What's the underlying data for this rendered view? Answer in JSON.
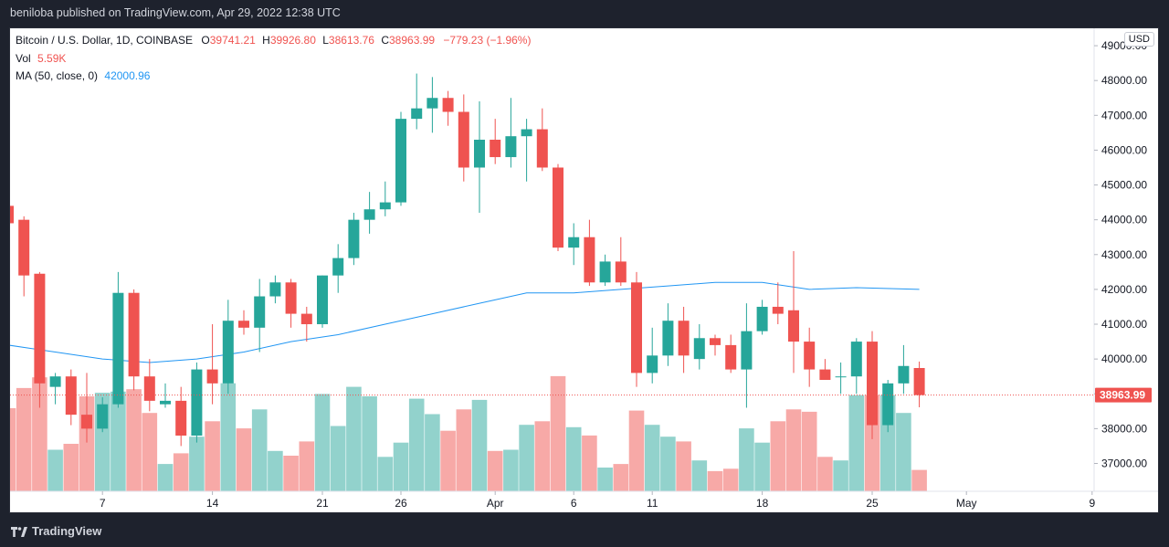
{
  "header": {
    "publisher_line": "beniloba published on TradingView.com, Apr 29, 2022 12:38 UTC"
  },
  "legend": {
    "symbol": "Bitcoin / U.S. Dollar, 1D, COINBASE",
    "o_label": "O",
    "o_value": "39741.21",
    "h_label": "H",
    "h_value": "39926.80",
    "l_label": "L",
    "l_value": "38613.76",
    "c_label": "C",
    "c_value": "38963.99",
    "change": "−779.23 (−1.96%)",
    "vol_label": "Vol",
    "vol_value": "5.59K",
    "ma_label": "MA (50, close, 0)",
    "ma_value": "42000.96"
  },
  "currency_badge": "USD",
  "last_price_label": "38963.99",
  "footer": {
    "logo_text": "TradingView"
  },
  "colors": {
    "up": "#26a69a",
    "down": "#ef5350",
    "up_volume": "#92d2cc",
    "down_volume": "#f7a9a7",
    "ma_line": "#2196f3",
    "background": "#ffffff"
  },
  "chart_data": {
    "type": "candlestick",
    "title": "Bitcoin / U.S. Dollar, 1D, COINBASE",
    "y_axis": {
      "ticks": [
        37000,
        38000,
        39000,
        40000,
        41000,
        42000,
        43000,
        44000,
        45000,
        46000,
        47000,
        48000,
        49000
      ],
      "tick_labels": [
        "37000.00",
        "38000.00",
        "39000.00",
        "40000.00",
        "41000.00",
        "42000.00",
        "43000.00",
        "44000.00",
        "45000.00",
        "46000.00",
        "47000.00",
        "48000.00",
        "49000.00"
      ],
      "range": [
        36200,
        49500
      ]
    },
    "x_axis": {
      "tick_labels": [
        "7",
        "14",
        "21",
        "26",
        "Apr",
        "6",
        "11",
        "18",
        "25",
        "May",
        "9"
      ],
      "tick_days": [
        6,
        13,
        20,
        25,
        31,
        36,
        41,
        48,
        55,
        61,
        69
      ]
    },
    "candles": [
      {
        "day": 0,
        "o": 44400,
        "h": 44500,
        "l": 43900,
        "c": 43900
      },
      {
        "day": 1,
        "o": 44000,
        "h": 44100,
        "l": 41800,
        "c": 42400
      },
      {
        "day": 2,
        "o": 42450,
        "h": 42500,
        "l": 38600,
        "c": 39300
      },
      {
        "day": 3,
        "o": 39200,
        "h": 39600,
        "l": 38700,
        "c": 39500
      },
      {
        "day": 4,
        "o": 39500,
        "h": 39700,
        "l": 38100,
        "c": 38400
      },
      {
        "day": 5,
        "o": 38400,
        "h": 39600,
        "l": 37600,
        "c": 38000
      },
      {
        "day": 6,
        "o": 38000,
        "h": 38900,
        "l": 37900,
        "c": 38700
      },
      {
        "day": 7,
        "o": 38700,
        "h": 42500,
        "l": 38600,
        "c": 41900
      },
      {
        "day": 8,
        "o": 41900,
        "h": 42000,
        "l": 39100,
        "c": 39500
      },
      {
        "day": 9,
        "o": 39500,
        "h": 40000,
        "l": 38500,
        "c": 38800
      },
      {
        "day": 10,
        "o": 38700,
        "h": 39300,
        "l": 38600,
        "c": 38800
      },
      {
        "day": 11,
        "o": 38800,
        "h": 39200,
        "l": 37500,
        "c": 37800
      },
      {
        "day": 12,
        "o": 37800,
        "h": 39900,
        "l": 37600,
        "c": 39700
      },
      {
        "day": 13,
        "o": 39700,
        "h": 41000,
        "l": 38700,
        "c": 39300
      },
      {
        "day": 14,
        "o": 39300,
        "h": 41700,
        "l": 39000,
        "c": 41100
      },
      {
        "day": 15,
        "o": 41100,
        "h": 41400,
        "l": 40700,
        "c": 40900
      },
      {
        "day": 16,
        "o": 40900,
        "h": 42300,
        "l": 40200,
        "c": 41800
      },
      {
        "day": 17,
        "o": 41800,
        "h": 42400,
        "l": 41600,
        "c": 42200
      },
      {
        "day": 18,
        "o": 42200,
        "h": 42300,
        "l": 40900,
        "c": 41300
      },
      {
        "day": 19,
        "o": 41300,
        "h": 41500,
        "l": 40500,
        "c": 41000
      },
      {
        "day": 20,
        "o": 41000,
        "h": 42400,
        "l": 40900,
        "c": 42400
      },
      {
        "day": 21,
        "o": 42400,
        "h": 43300,
        "l": 41900,
        "c": 42900
      },
      {
        "day": 22,
        "o": 42900,
        "h": 44200,
        "l": 42700,
        "c": 44000
      },
      {
        "day": 23,
        "o": 44000,
        "h": 44800,
        "l": 43600,
        "c": 44300
      },
      {
        "day": 24,
        "o": 44300,
        "h": 45100,
        "l": 44100,
        "c": 44500
      },
      {
        "day": 25,
        "o": 44500,
        "h": 47100,
        "l": 44400,
        "c": 46900
      },
      {
        "day": 26,
        "o": 46900,
        "h": 48200,
        "l": 46600,
        "c": 47200
      },
      {
        "day": 27,
        "o": 47200,
        "h": 48100,
        "l": 46500,
        "c": 47500
      },
      {
        "day": 28,
        "o": 47500,
        "h": 47700,
        "l": 46700,
        "c": 47100
      },
      {
        "day": 29,
        "o": 47100,
        "h": 47600,
        "l": 45100,
        "c": 45500
      },
      {
        "day": 30,
        "o": 45500,
        "h": 47400,
        "l": 44200,
        "c": 46300
      },
      {
        "day": 31,
        "o": 46300,
        "h": 46900,
        "l": 45600,
        "c": 45800
      },
      {
        "day": 32,
        "o": 45800,
        "h": 47500,
        "l": 45500,
        "c": 46400
      },
      {
        "day": 33,
        "o": 46400,
        "h": 46900,
        "l": 45100,
        "c": 46600
      },
      {
        "day": 34,
        "o": 46600,
        "h": 47200,
        "l": 45400,
        "c": 45500
      },
      {
        "day": 35,
        "o": 45500,
        "h": 45600,
        "l": 43100,
        "c": 43200
      },
      {
        "day": 36,
        "o": 43200,
        "h": 43900,
        "l": 42700,
        "c": 43500
      },
      {
        "day": 37,
        "o": 43500,
        "h": 44000,
        "l": 42100,
        "c": 42200
      },
      {
        "day": 38,
        "o": 42200,
        "h": 43000,
        "l": 42100,
        "c": 42800
      },
      {
        "day": 39,
        "o": 42800,
        "h": 43500,
        "l": 42100,
        "c": 42200
      },
      {
        "day": 40,
        "o": 42200,
        "h": 42500,
        "l": 39200,
        "c": 39600
      },
      {
        "day": 41,
        "o": 39600,
        "h": 40900,
        "l": 39300,
        "c": 40100
      },
      {
        "day": 42,
        "o": 40100,
        "h": 41600,
        "l": 39800,
        "c": 41100
      },
      {
        "day": 43,
        "o": 41100,
        "h": 41500,
        "l": 39600,
        "c": 40100
      },
      {
        "day": 44,
        "o": 40000,
        "h": 41000,
        "l": 39700,
        "c": 40600
      },
      {
        "day": 45,
        "o": 40600,
        "h": 40700,
        "l": 40100,
        "c": 40400
      },
      {
        "day": 46,
        "o": 40400,
        "h": 40700,
        "l": 39600,
        "c": 39700
      },
      {
        "day": 47,
        "o": 39700,
        "h": 41600,
        "l": 38600,
        "c": 40800
      },
      {
        "day": 48,
        "o": 40800,
        "h": 41700,
        "l": 40700,
        "c": 41500
      },
      {
        "day": 49,
        "o": 41500,
        "h": 42200,
        "l": 41000,
        "c": 41300
      },
      {
        "day": 50,
        "o": 41400,
        "h": 43100,
        "l": 39600,
        "c": 40500
      },
      {
        "day": 51,
        "o": 40500,
        "h": 40900,
        "l": 39200,
        "c": 39700
      },
      {
        "day": 52,
        "o": 39700,
        "h": 40000,
        "l": 39400,
        "c": 39400
      },
      {
        "day": 53,
        "o": 39500,
        "h": 39900,
        "l": 39000,
        "c": 39500
      },
      {
        "day": 54,
        "o": 39500,
        "h": 40600,
        "l": 39000,
        "c": 40500
      },
      {
        "day": 55,
        "o": 40500,
        "h": 40800,
        "l": 37700,
        "c": 38100
      },
      {
        "day": 56,
        "o": 38100,
        "h": 39400,
        "l": 37900,
        "c": 39300
      },
      {
        "day": 57,
        "o": 39300,
        "h": 40400,
        "l": 39000,
        "c": 39800
      },
      {
        "day": 58,
        "o": 39741.21,
        "h": 39926.8,
        "l": 38613.76,
        "c": 38963.99
      }
    ],
    "volume": [
      {
        "day": 0,
        "v": 7.0,
        "up": false
      },
      {
        "day": 1,
        "v": 8.7,
        "up": false
      },
      {
        "day": 2,
        "v": 9.6,
        "up": false
      },
      {
        "day": 3,
        "v": 3.5,
        "up": true
      },
      {
        "day": 4,
        "v": 4.0,
        "up": false
      },
      {
        "day": 5,
        "v": 8.0,
        "up": false
      },
      {
        "day": 6,
        "v": 8.3,
        "up": true
      },
      {
        "day": 7,
        "v": 8.4,
        "up": true
      },
      {
        "day": 8,
        "v": 8.6,
        "up": false
      },
      {
        "day": 9,
        "v": 6.6,
        "up": false
      },
      {
        "day": 10,
        "v": 2.3,
        "up": true
      },
      {
        "day": 11,
        "v": 3.2,
        "up": false
      },
      {
        "day": 12,
        "v": 4.6,
        "up": true
      },
      {
        "day": 13,
        "v": 5.9,
        "up": false
      },
      {
        "day": 14,
        "v": 9.1,
        "up": true
      },
      {
        "day": 15,
        "v": 5.3,
        "up": false
      },
      {
        "day": 16,
        "v": 6.9,
        "up": true
      },
      {
        "day": 17,
        "v": 3.4,
        "up": true
      },
      {
        "day": 18,
        "v": 3.0,
        "up": false
      },
      {
        "day": 19,
        "v": 4.2,
        "up": false
      },
      {
        "day": 20,
        "v": 8.2,
        "up": true
      },
      {
        "day": 21,
        "v": 5.5,
        "up": true
      },
      {
        "day": 22,
        "v": 8.8,
        "up": true
      },
      {
        "day": 23,
        "v": 8.0,
        "up": true
      },
      {
        "day": 24,
        "v": 2.9,
        "up": true
      },
      {
        "day": 25,
        "v": 4.1,
        "up": true
      },
      {
        "day": 26,
        "v": 7.8,
        "up": true
      },
      {
        "day": 27,
        "v": 6.5,
        "up": true
      },
      {
        "day": 28,
        "v": 5.1,
        "up": false
      },
      {
        "day": 29,
        "v": 6.9,
        "up": false
      },
      {
        "day": 30,
        "v": 7.7,
        "up": true
      },
      {
        "day": 31,
        "v": 3.4,
        "up": false
      },
      {
        "day": 32,
        "v": 3.5,
        "up": true
      },
      {
        "day": 33,
        "v": 5.6,
        "up": true
      },
      {
        "day": 34,
        "v": 5.9,
        "up": false
      },
      {
        "day": 35,
        "v": 9.7,
        "up": false
      },
      {
        "day": 36,
        "v": 5.4,
        "up": true
      },
      {
        "day": 37,
        "v": 4.7,
        "up": false
      },
      {
        "day": 38,
        "v": 2.0,
        "up": true
      },
      {
        "day": 39,
        "v": 2.3,
        "up": false
      },
      {
        "day": 40,
        "v": 6.8,
        "up": false
      },
      {
        "day": 41,
        "v": 5.6,
        "up": true
      },
      {
        "day": 42,
        "v": 4.6,
        "up": true
      },
      {
        "day": 43,
        "v": 4.2,
        "up": false
      },
      {
        "day": 44,
        "v": 2.6,
        "up": true
      },
      {
        "day": 45,
        "v": 1.7,
        "up": false
      },
      {
        "day": 46,
        "v": 1.9,
        "up": false
      },
      {
        "day": 47,
        "v": 5.3,
        "up": true
      },
      {
        "day": 48,
        "v": 4.1,
        "up": true
      },
      {
        "day": 49,
        "v": 5.9,
        "up": false
      },
      {
        "day": 50,
        "v": 6.9,
        "up": false
      },
      {
        "day": 51,
        "v": 6.7,
        "up": false
      },
      {
        "day": 52,
        "v": 2.9,
        "up": false
      },
      {
        "day": 53,
        "v": 2.6,
        "up": true
      },
      {
        "day": 54,
        "v": 8.1,
        "up": true
      },
      {
        "day": 55,
        "v": 8.1,
        "up": false
      },
      {
        "day": 56,
        "v": 8.1,
        "up": true
      },
      {
        "day": 57,
        "v": 6.6,
        "up": true
      },
      {
        "day": 58,
        "v": 1.8,
        "up": false
      }
    ],
    "ma_series": {
      "name": "MA (50, close, 0)",
      "points": [
        {
          "day": 0,
          "v": 40400
        },
        {
          "day": 3,
          "v": 40200
        },
        {
          "day": 6,
          "v": 40000
        },
        {
          "day": 9,
          "v": 39900
        },
        {
          "day": 12,
          "v": 40000
        },
        {
          "day": 15,
          "v": 40200
        },
        {
          "day": 18,
          "v": 40500
        },
        {
          "day": 21,
          "v": 40700
        },
        {
          "day": 24,
          "v": 41000
        },
        {
          "day": 27,
          "v": 41300
        },
        {
          "day": 30,
          "v": 41600
        },
        {
          "day": 33,
          "v": 41900
        },
        {
          "day": 36,
          "v": 41900
        },
        {
          "day": 39,
          "v": 42000
        },
        {
          "day": 42,
          "v": 42100
        },
        {
          "day": 45,
          "v": 42200
        },
        {
          "day": 48,
          "v": 42200
        },
        {
          "day": 51,
          "v": 42000
        },
        {
          "day": 54,
          "v": 42050
        },
        {
          "day": 58,
          "v": 42000
        }
      ]
    },
    "last_price": 38963.99
  }
}
